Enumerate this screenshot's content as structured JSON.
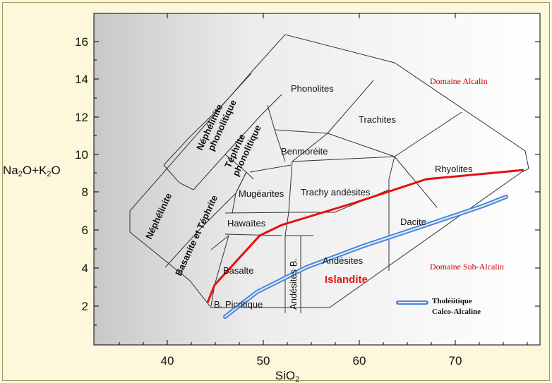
{
  "axes": {
    "x_title": "SiO",
    "x_title_sub": "2",
    "y_title_parts": [
      "Na",
      "2",
      "O+K",
      "2",
      "O"
    ],
    "x_ticks": [
      "40",
      "50",
      "60",
      "70"
    ],
    "y_ticks": [
      "2",
      "4",
      "6",
      "8",
      "10",
      "12",
      "14",
      "16"
    ]
  },
  "fields": {
    "phonolites": "Phonolites",
    "trachites": "Trachites",
    "benmoreite": "Benmoréite",
    "rhyolites": "Rhyolites",
    "mugearites": "Mugéarites",
    "trachy_andesites": "Trachy andésites",
    "hawaiites": "Hawaïtes",
    "dacite": "Dacite",
    "andesites": "Andésites",
    "basalte": "Basalte",
    "b_picritique": "B. Picritique",
    "andesites_b": "Andésites B.",
    "nephelinite": "Néphélinite",
    "basanite_tephrite": "Basanite et Téphrite",
    "nephelinite_phono_1": "Néphélinite",
    "nephelinite_phono_2": "phonolitique",
    "tephrite_phono_1": "Téphrite",
    "tephrite_phono_2": "phonolitique"
  },
  "annotations": {
    "domaine_alcalin": "Domaine Alcalin",
    "domaine_sub_alcalin": "Domaine Sub-Alcalin",
    "islandite": "Islandite"
  },
  "legend": {
    "line1": "Tholéiitique",
    "line2": "Calco-Alcaline"
  },
  "colors": {
    "alkaline_divide": "#e51010",
    "tholeiitic_divide": "#4a86d8",
    "plot_gradient_left": "#c8c8c8",
    "plot_gradient_right": "#ffffff"
  },
  "chart_data": {
    "type": "diagram",
    "xlabel": "SiO2",
    "ylabel": "Na2O+K2O",
    "xlim": [
      32,
      78
    ],
    "ylim": [
      0.5,
      17
    ],
    "x_ticks": [
      40,
      50,
      60,
      70
    ],
    "y_ticks": [
      2,
      4,
      6,
      8,
      10,
      12,
      14,
      16
    ],
    "series": [
      {
        "name": "Domaine Alcalin / Domaine Sub-Alcalin",
        "x": [
          43.7,
          45.0,
          52.1,
          59.7,
          67,
          77
        ],
        "y": [
          2.2,
          3.3,
          5.3,
          7.3,
          8.6,
          9.1
        ]
      },
      {
        "name": "Tholéiitique / Calco-Alcaline",
        "x": [
          45.5,
          50,
          55,
          62,
          70,
          75.5
        ],
        "y": [
          1.5,
          2.8,
          4.1,
          5.6,
          7.0,
          7.6
        ]
      }
    ]
  }
}
